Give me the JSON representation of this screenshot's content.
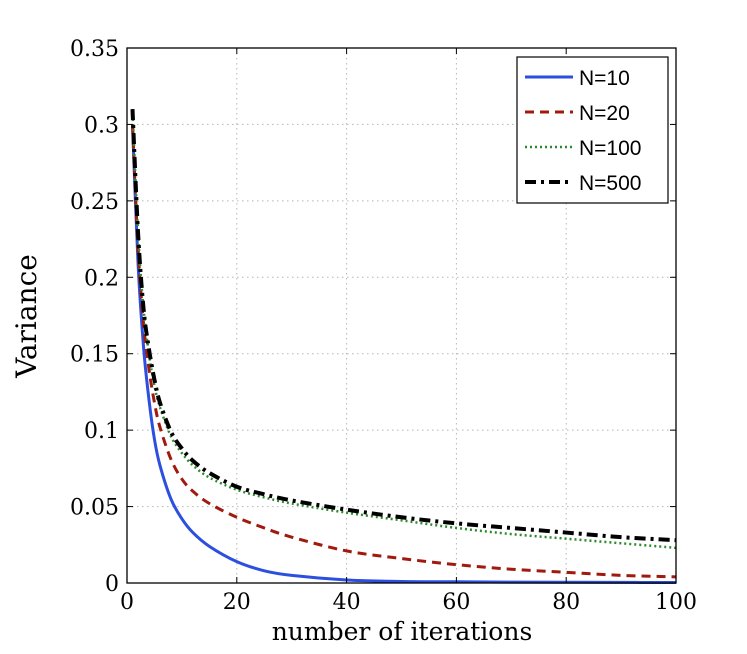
{
  "chart_data": {
    "type": "line",
    "title": "",
    "xlabel": "number of iterations",
    "ylabel": "Variance",
    "xlim": [
      0,
      100
    ],
    "ylim": [
      0,
      0.35
    ],
    "xticks": [
      0,
      20,
      40,
      60,
      80,
      100
    ],
    "xtick_labels": [
      "0",
      "20",
      "40",
      "60",
      "80",
      "100"
    ],
    "yticks": [
      0,
      0.05,
      0.1,
      0.15,
      0.2,
      0.25,
      0.3,
      0.35
    ],
    "ytick_labels": [
      "0",
      "0.05",
      "0.1",
      "0.15",
      "0.2",
      "0.25",
      "0.3",
      "0.35"
    ],
    "grid": true,
    "legend_position": "top-right",
    "series": [
      {
        "name": "N=10",
        "color": "#2d4fe0",
        "style": "solid",
        "x": [
          1,
          2,
          3,
          4,
          5,
          6,
          8,
          10,
          12,
          15,
          20,
          25,
          30,
          40,
          50,
          60,
          70,
          80,
          90,
          100
        ],
        "y": [
          0.3,
          0.21,
          0.155,
          0.12,
          0.094,
          0.077,
          0.055,
          0.042,
          0.033,
          0.024,
          0.014,
          0.008,
          0.005,
          0.002,
          0.001,
          0.0008,
          0.0006,
          0.0005,
          0.0004,
          0.0003
        ]
      },
      {
        "name": "N=20",
        "color": "#a01a0e",
        "style": "dashed",
        "x": [
          1,
          2,
          3,
          4,
          5,
          6,
          8,
          10,
          12,
          15,
          20,
          25,
          30,
          40,
          50,
          60,
          70,
          80,
          90,
          100
        ],
        "y": [
          0.3,
          0.22,
          0.17,
          0.14,
          0.118,
          0.102,
          0.081,
          0.068,
          0.06,
          0.052,
          0.043,
          0.036,
          0.03,
          0.021,
          0.016,
          0.012,
          0.009,
          0.007,
          0.005,
          0.004
        ]
      },
      {
        "name": "N=100",
        "color": "#2c8a2c",
        "style": "dotted",
        "x": [
          1,
          2,
          3,
          4,
          5,
          6,
          8,
          10,
          12,
          15,
          20,
          25,
          30,
          40,
          50,
          60,
          70,
          80,
          90,
          100
        ],
        "y": [
          0.31,
          0.23,
          0.18,
          0.15,
          0.129,
          0.115,
          0.096,
          0.085,
          0.077,
          0.069,
          0.061,
          0.056,
          0.052,
          0.046,
          0.041,
          0.036,
          0.032,
          0.029,
          0.026,
          0.023
        ]
      },
      {
        "name": "N=500",
        "color": "#000000",
        "style": "dashdot",
        "x": [
          1,
          2,
          3,
          4,
          5,
          6,
          8,
          10,
          12,
          15,
          20,
          25,
          30,
          40,
          50,
          60,
          70,
          80,
          90,
          100
        ],
        "y": [
          0.31,
          0.23,
          0.18,
          0.153,
          0.133,
          0.118,
          0.099,
          0.088,
          0.08,
          0.072,
          0.063,
          0.058,
          0.054,
          0.048,
          0.043,
          0.039,
          0.036,
          0.033,
          0.03,
          0.028
        ]
      }
    ]
  }
}
